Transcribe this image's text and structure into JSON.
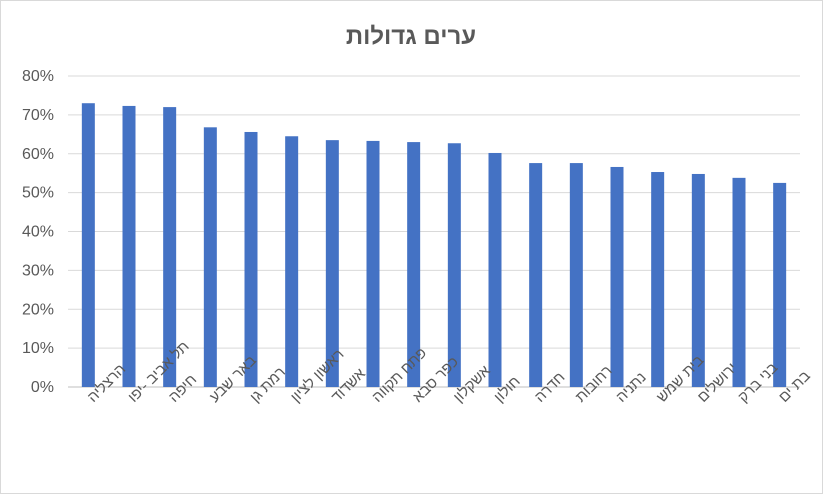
{
  "chart_data": {
    "type": "bar",
    "title": "ערים גדולות",
    "xlabel": "",
    "ylabel": "",
    "ylim": [
      0,
      80
    ],
    "yticks": [
      "0%",
      "10%",
      "20%",
      "30%",
      "40%",
      "50%",
      "60%",
      "70%",
      "80%"
    ],
    "grid": true,
    "legend": "none",
    "bar_color": "#4472c4",
    "categories": [
      "הרצליה",
      "תל אביב -יפו",
      "חיפה",
      "באר שבע",
      "רמת גן",
      "ראשון לציון",
      "אשדוד",
      "פתח תקווה",
      "כפר סבא",
      "אשקלון",
      "חולון",
      "חדרה",
      "רחובות",
      "נתניה",
      "בית שמש",
      "ירושלים",
      "בני ברק",
      "בת ים"
    ],
    "values": [
      73,
      72.3,
      72,
      66.8,
      65.6,
      64.5,
      63.5,
      63.3,
      63,
      62.7,
      60.2,
      57.6,
      57.6,
      56.6,
      55.3,
      54.8,
      53.8,
      52.5
    ]
  }
}
